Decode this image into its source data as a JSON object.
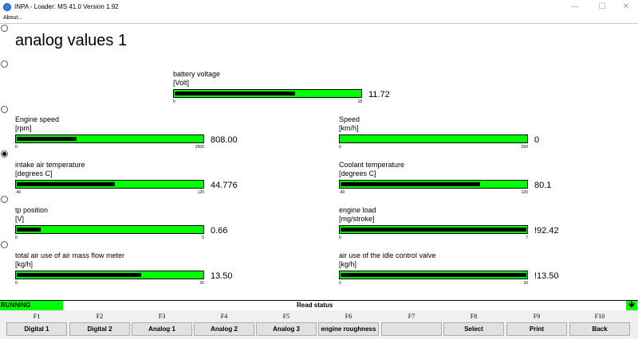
{
  "window": {
    "title": "INPA - Loader:  MS 41.0 Version 1.92",
    "minimize": "—",
    "maximize": "☐",
    "close": "✕"
  },
  "menu": {
    "about": "About..."
  },
  "screen_title": "analog values 1",
  "gauges": [
    {
      "name": "battery voltage",
      "unit": "[Volt]",
      "min": "0",
      "max": "18",
      "value": "11.72",
      "fraction": 0.65
    },
    {
      "name": "Engine speed",
      "unit": "[rpm]",
      "min": "0",
      "max": "2500",
      "value": "808.00",
      "fraction": 0.32
    },
    {
      "name": "Speed",
      "unit": "[km/h]",
      "min": "0",
      "max": "250",
      "value": "0",
      "fraction": 0.0
    },
    {
      "name": "intake air temperature",
      "unit": "[degrees C]",
      "min": "-40",
      "max": "120",
      "value": "44.776",
      "fraction": 0.53
    },
    {
      "name": "Coolant temperature",
      "unit": "[degrees C]",
      "min": "-40",
      "max": "120",
      "value": "80.1",
      "fraction": 0.75
    },
    {
      "name": "tp position",
      "unit": "[V]",
      "min": "0",
      "max": "5",
      "value": "0.66",
      "fraction": 0.13
    },
    {
      "name": "engine load",
      "unit": "[mg/stroke]",
      "min": "0",
      "max": "7",
      "value": "!92.42",
      "fraction": 1.0
    },
    {
      "name": "total air use of air mass flow meter",
      "unit": "[kg/h]",
      "min": "0",
      "max": "20",
      "value": "13.50",
      "fraction": 0.67
    },
    {
      "name": "air use of the idle control valve",
      "unit": "[kg/h]",
      "min": "0",
      "max": "10",
      "value": "!13.50",
      "fraction": 1.0
    }
  ],
  "status": {
    "running": "RUNNING",
    "text": "Read status",
    "arrow": "🡻"
  },
  "fkeys": [
    {
      "key": "F1",
      "label": "Digital 1"
    },
    {
      "key": "F2",
      "label": "Digital 2"
    },
    {
      "key": "F3",
      "label": "Analog 1"
    },
    {
      "key": "F4",
      "label": "Analog 2"
    },
    {
      "key": "F5",
      "label": "Analog 3"
    },
    {
      "key": "F6",
      "label": "engine roughness"
    },
    {
      "key": "F7",
      "label": ""
    },
    {
      "key": "F8",
      "label": "Select"
    },
    {
      "key": "F9",
      "label": "Print"
    },
    {
      "key": "F10",
      "label": "Back"
    }
  ],
  "colors": {
    "bar_green": "#00ff00",
    "bar_fill": "#000000"
  }
}
